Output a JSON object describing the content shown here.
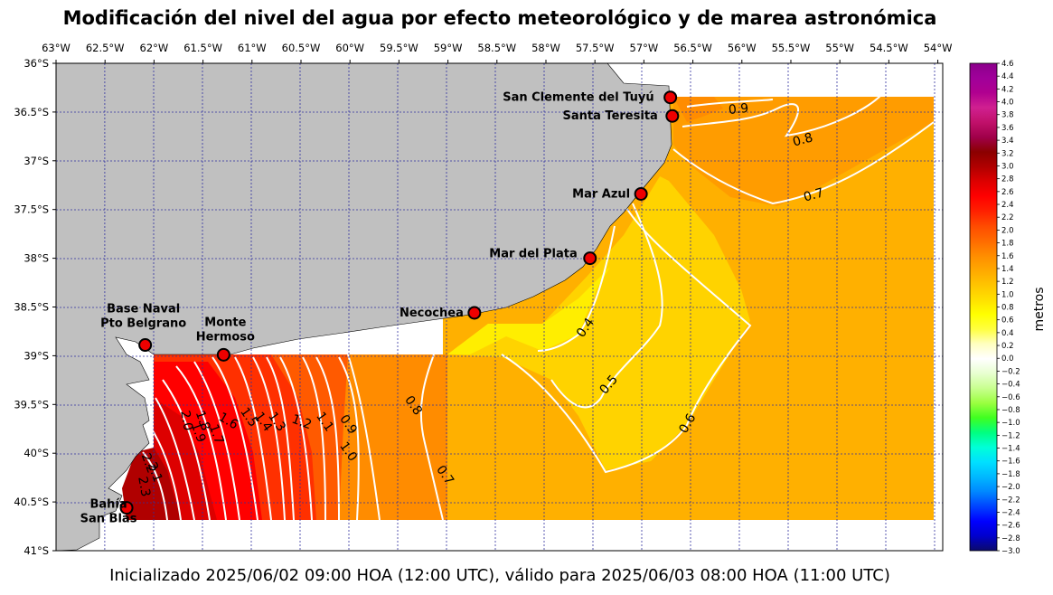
{
  "title": "Modificación del nivel del agua por efecto meteorológico y de marea astronómica",
  "footer": "Inicializado 2025/06/02 09:00 HOA (12:00 UTC), válido para 2025/06/03 08:00 HOA (11:00 UTC)",
  "map": {
    "lon_range": [
      -63.0,
      -53.95
    ],
    "lat_range": [
      -41.0,
      -36.0
    ],
    "grid": true,
    "lon_ticks": [
      {
        "value": -63.0,
        "label": "63°W"
      },
      {
        "value": -62.5,
        "label": "62.5°W"
      },
      {
        "value": -62.0,
        "label": "62°W"
      },
      {
        "value": -61.5,
        "label": "61.5°W"
      },
      {
        "value": -61.0,
        "label": "61°W"
      },
      {
        "value": -60.5,
        "label": "60.5°W"
      },
      {
        "value": -60.0,
        "label": "60°W"
      },
      {
        "value": -59.5,
        "label": "59.5°W"
      },
      {
        "value": -59.0,
        "label": "59°W"
      },
      {
        "value": -58.5,
        "label": "58.5°W"
      },
      {
        "value": -58.0,
        "label": "58°W"
      },
      {
        "value": -57.5,
        "label": "57.5°W"
      },
      {
        "value": -57.0,
        "label": "57°W"
      },
      {
        "value": -56.5,
        "label": "56.5°W"
      },
      {
        "value": -56.0,
        "label": "56°W"
      },
      {
        "value": -55.5,
        "label": "55.5°W"
      },
      {
        "value": -55.0,
        "label": "55°W"
      },
      {
        "value": -54.5,
        "label": "54.5°W"
      },
      {
        "value": -54.0,
        "label": "54°W"
      }
    ],
    "lat_ticks": [
      {
        "value": -36.0,
        "label": "36°S"
      },
      {
        "value": -36.5,
        "label": "36.5°S"
      },
      {
        "value": -37.0,
        "label": "37°S"
      },
      {
        "value": -37.5,
        "label": "37.5°S"
      },
      {
        "value": -38.0,
        "label": "38°S"
      },
      {
        "value": -38.5,
        "label": "38.5°S"
      },
      {
        "value": -39.0,
        "label": "39°S"
      },
      {
        "value": -39.5,
        "label": "39.5°S"
      },
      {
        "value": -40.0,
        "label": "40°S"
      },
      {
        "value": -40.5,
        "label": "40.5°S"
      },
      {
        "value": -41.0,
        "label": "41°S"
      }
    ],
    "cities": [
      {
        "lines": [
          "San Clemente del Tuyú"
        ],
        "lon": -56.73,
        "lat": -36.35
      },
      {
        "lines": [
          "Santa Teresita"
        ],
        "lon": -56.71,
        "lat": -36.54
      },
      {
        "lines": [
          "Mar Azul"
        ],
        "lon": -57.03,
        "lat": -37.34
      },
      {
        "lines": [
          "Mar del Plata"
        ],
        "lon": -57.55,
        "lat": -38.0
      },
      {
        "lines": [
          "Necochea"
        ],
        "lon": -58.73,
        "lat": -38.56
      },
      {
        "lines": [
          "Base Naval",
          "Pto Belgrano"
        ],
        "lon": -62.09,
        "lat": -38.89
      },
      {
        "lines": [
          "Monte",
          "Hermoso"
        ],
        "lon": -61.29,
        "lat": -38.99
      },
      {
        "lines": [
          "Bahía",
          "San Blas"
        ],
        "lon": -62.28,
        "lat": -40.56
      }
    ],
    "contour_labels": [
      "0.4",
      "0.5",
      "0.6",
      "0.7",
      "0.7",
      "0.8",
      "0.8",
      "0.9",
      "0.9",
      "1.0",
      "1.1",
      "1.2",
      "1.3",
      "1.4",
      "1.5",
      "1.6",
      "1.7",
      "1.8",
      "1.9",
      "2.0",
      "2.1",
      "2.2",
      "2.3"
    ]
  },
  "colorbar": {
    "label": "metros",
    "range": [
      -3.0,
      4.6
    ],
    "ticks": [
      "4.6",
      "4.4",
      "4.2",
      "4.0",
      "3.8",
      "3.6",
      "3.4",
      "3.2",
      "3.0",
      "2.8",
      "2.6",
      "2.4",
      "2.2",
      "2.0",
      "1.8",
      "1.6",
      "1.4",
      "1.2",
      "1.0",
      "0.8",
      "0.6",
      "0.4",
      "0.2",
      "0.0",
      "−0.2",
      "−0.4",
      "−0.6",
      "−0.8",
      "−1.0",
      "−1.2",
      "−1.4",
      "−1.6",
      "−1.8",
      "−2.0",
      "−2.2",
      "−2.4",
      "−2.6",
      "−2.8",
      "−3.0"
    ],
    "colors": [
      "#0b0a6b",
      "#0000cd",
      "#0000ff",
      "#0044ff",
      "#0088ff",
      "#00b8ff",
      "#00e0ff",
      "#00ffd8",
      "#00ff80",
      "#40ff20",
      "#9bff40",
      "#c8ff90",
      "#e8ffd0",
      "#ffffff",
      "#ffffc0",
      "#ffff40",
      "#ffff00",
      "#ffe000",
      "#ffc400",
      "#ffa800",
      "#ff8c00",
      "#ff6a00",
      "#ff4a00",
      "#ff2000",
      "#ff0000",
      "#dd0000",
      "#b00000",
      "#8b0000",
      "#a0004a",
      "#c0106a",
      "#d02090",
      "#b00090",
      "#a0009a",
      "#8b008b"
    ]
  },
  "colors": {
    "land": "#c0c0c0",
    "grid": "#3030a0",
    "contour": "#ffffff",
    "city_marker": "#ee0000"
  }
}
